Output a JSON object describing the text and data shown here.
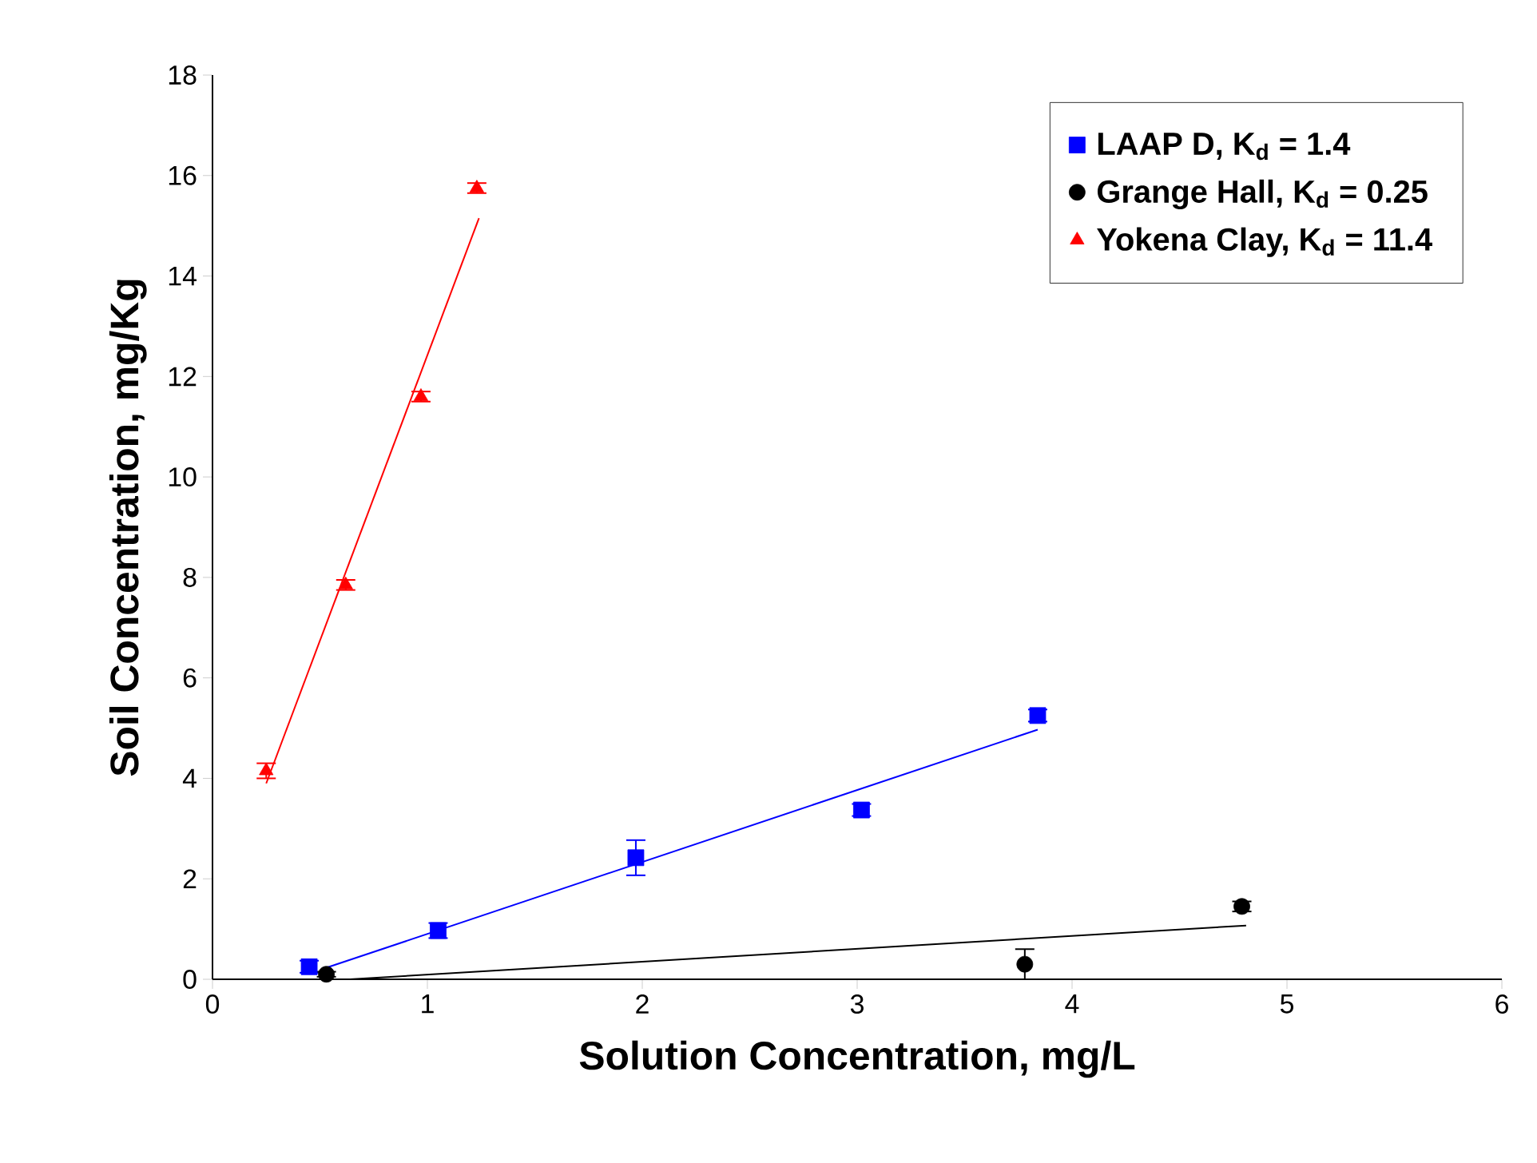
{
  "chart_data": {
    "type": "scatter",
    "xlabel": "Solution Concentration, mg/L",
    "ylabel": "Soil Concentration, mg/Kg",
    "xlim": [
      0,
      6
    ],
    "ylim": [
      0,
      18
    ],
    "xticks": [
      0,
      1,
      2,
      3,
      4,
      5,
      6
    ],
    "yticks": [
      0,
      2,
      4,
      6,
      8,
      10,
      12,
      14,
      16,
      18
    ],
    "grid": false,
    "legend": "top right",
    "series": [
      {
        "name": "LAAP D, K$_{d}$ = 1.4",
        "marker": "square",
        "color": "#0000ff",
        "x": [
          0.45,
          1.05,
          1.97,
          3.02,
          3.84
        ],
        "values": [
          0.25,
          0.97,
          2.42,
          3.37,
          5.25
        ],
        "errors": [
          0.12,
          0.15,
          0.35,
          0.12,
          0.12
        ]
      },
      {
        "name": "Grange Hall, K$_{d}$ = 0.25",
        "marker": "circle",
        "color": "#000000",
        "x": [
          0.53,
          3.78,
          4.79
        ],
        "values": [
          0.1,
          0.3,
          1.45
        ],
        "errors": [
          0.05,
          0.3,
          0.1
        ]
      },
      {
        "name": "Yokena Clay, K$_{d}$ = 11.4",
        "marker": "triangle",
        "color": "#ff0000",
        "x": [
          0.25,
          0.62,
          0.97,
          1.23
        ],
        "values": [
          4.15,
          7.85,
          11.6,
          15.75
        ],
        "errors": [
          0.15,
          0.1,
          0.1,
          0.1
        ]
      },
      {
        "type": "line",
        "color": "#0000ff",
        "x": [
          0.53,
          3.84
        ],
        "values": [
          0.23,
          4.97
        ]
      },
      {
        "type": "line",
        "color": "#000000",
        "x": [
          0.64,
          4.81
        ],
        "values": [
          0,
          1.07
        ]
      },
      {
        "type": "line",
        "color": "#ff0000",
        "x": [
          0.25,
          1.24
        ],
        "values": [
          3.9,
          15.15
        ]
      }
    ]
  }
}
